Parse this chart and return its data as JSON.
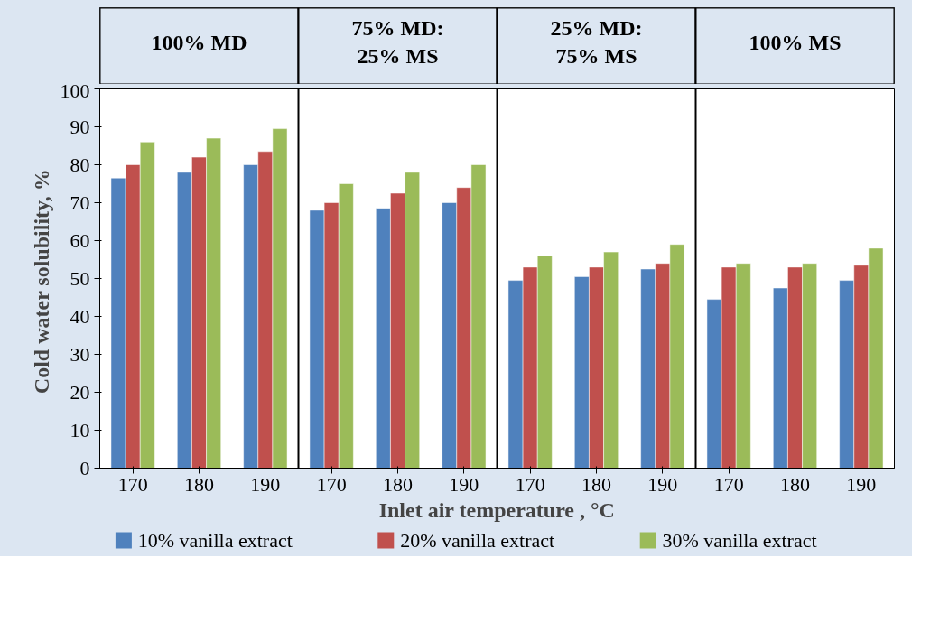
{
  "chart_data": {
    "type": "bar",
    "xlabel": "Inlet air temperature , °C",
    "ylabel": "Cold water  solubility, %",
    "categories": [
      "170",
      "180",
      "190",
      "170",
      "180",
      "190",
      "170",
      "180",
      "190",
      "170",
      "180",
      "190"
    ],
    "series": [
      {
        "name": "10% vanilla extract",
        "color": "#4f81bd",
        "values": [
          76.5,
          78,
          80,
          68,
          68.5,
          70,
          49.5,
          50.5,
          52.5,
          44.5,
          47.5,
          49.5
        ]
      },
      {
        "name": "20% vanilla extract",
        "color": "#c0504d",
        "values": [
          80,
          82,
          83.5,
          70,
          72.5,
          74,
          53,
          53,
          54,
          53,
          53,
          53.5
        ]
      },
      {
        "name": "30% vanilla extract",
        "color": "#9bbb59",
        "values": [
          86,
          87,
          89.5,
          75,
          78,
          80,
          56,
          57,
          59,
          54,
          54,
          58
        ]
      }
    ],
    "annotations": [
      "100% MD",
      "75% MD:\n25% MS",
      "25% MD:\n75% MS",
      "100% MS"
    ],
    "ylim": [
      0,
      100
    ],
    "yticks": [
      0,
      10,
      20,
      30,
      40,
      50,
      60,
      70,
      80,
      90,
      100
    ],
    "grid": false,
    "legend": "bottom"
  }
}
